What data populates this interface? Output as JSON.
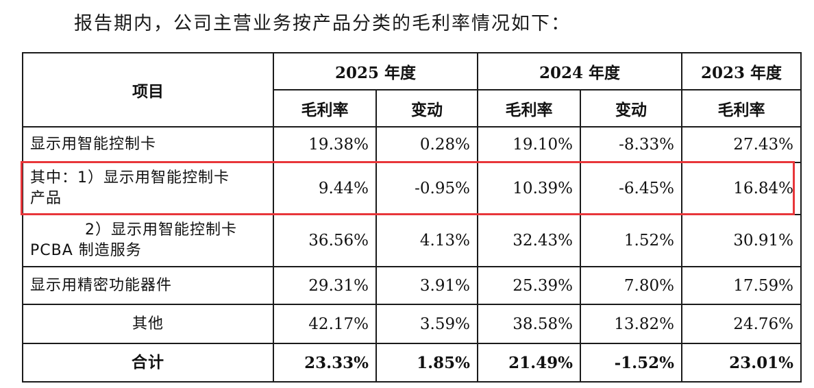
{
  "intro_text": "报告期内，公司主营业务按产品分类的毛利率情况如下：",
  "header": {
    "item_label": "项目",
    "years": [
      "2025 年度",
      "2024 年度",
      "2023 年度"
    ],
    "gross_margin_label": "毛利率",
    "change_label": "变动"
  },
  "rows": [
    {
      "label_line1": "显示用智能控制卡",
      "label_line2": "",
      "gm_2025": "19.38%",
      "chg_2025": "0.28%",
      "gm_2024": "19.10%",
      "chg_2024": "-8.33%",
      "gm_2023": "27.43%"
    },
    {
      "label_line1": "其中：1）显示用智能控制卡",
      "label_line2": "产品",
      "gm_2025": "9.44%",
      "chg_2025": "-0.95%",
      "gm_2024": "10.39%",
      "chg_2024": "-6.45%",
      "gm_2023": "16.84%"
    },
    {
      "label_line1": "2）显示用智能控制卡",
      "label_line2": "PCBA 制造服务",
      "gm_2025": "36.56%",
      "chg_2025": "4.13%",
      "gm_2024": "32.43%",
      "chg_2024": "1.52%",
      "gm_2023": "30.91%"
    },
    {
      "label_line1": "显示用精密功能器件",
      "label_line2": "",
      "gm_2025": "29.31%",
      "chg_2025": "3.91%",
      "gm_2024": "25.39%",
      "chg_2024": "7.80%",
      "gm_2023": "17.59%"
    },
    {
      "label_line1": "其他",
      "label_line2": "",
      "gm_2025": "42.17%",
      "chg_2025": "3.59%",
      "gm_2024": "38.58%",
      "chg_2024": "13.82%",
      "gm_2023": "24.76%"
    },
    {
      "label_line1": "合计",
      "label_line2": "",
      "gm_2025": "23.33%",
      "chg_2025": "1.85%",
      "gm_2024": "21.49%",
      "chg_2024": "-1.52%",
      "gm_2023": "23.01%"
    }
  ],
  "highlight_color": "#e8363a"
}
